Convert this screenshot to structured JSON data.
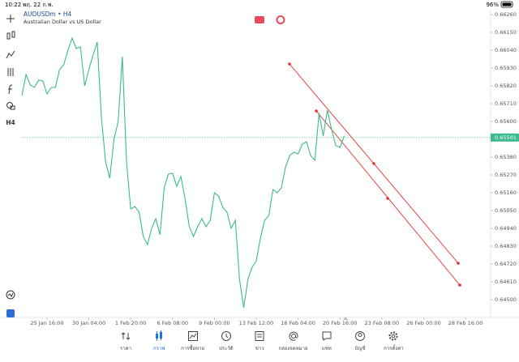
{
  "status_bar": {
    "time": "10:22",
    "date": "พฤ. 22 ก.พ.",
    "battery": "96%"
  },
  "header": {
    "symbol": "AUDUSDm • H4",
    "description": "Australian Dollar vs US Dollar"
  },
  "toolbar": {
    "timeframe": "H4"
  },
  "chart_data": {
    "type": "line",
    "color": "#3dba8c",
    "values": [
      0.6576,
      0.6589,
      0.65825,
      0.6581,
      0.65855,
      0.6585,
      0.6577,
      0.6581,
      0.6581,
      0.6592,
      0.6595,
      0.6604,
      0.66115,
      0.6605,
      0.6606,
      0.6582,
      0.6592,
      0.6601,
      0.6609,
      0.65625,
      0.6535,
      0.6525,
      0.6549,
      0.656,
      0.66,
      0.6535,
      0.6506,
      0.65075,
      0.6504,
      0.6489,
      0.6484,
      0.6494,
      0.65,
      0.649,
      0.6519,
      0.65275,
      0.6528,
      0.652,
      0.6526,
      0.6512,
      0.6495,
      0.6489,
      0.6495,
      0.65,
      0.6495,
      0.6499,
      0.6516,
      0.6514,
      0.6507,
      0.6504,
      0.6494,
      0.6499,
      0.64625,
      0.6445,
      0.64625,
      0.647,
      0.6474,
      0.6488,
      0.6499,
      0.6502,
      0.6518,
      0.6516,
      0.6519,
      0.6532,
      0.6539,
      0.6541,
      0.654,
      0.6546,
      0.65475,
      0.6539,
      0.6536,
      0.6565,
      0.6551,
      0.6567,
      0.6555,
      0.6545,
      0.6544,
      0.6551
    ],
    "current_price": 0.65501,
    "xlim": [
      0,
      112
    ],
    "xticks": [
      {
        "value": 6,
        "label": "25 Jan 16:00"
      },
      {
        "value": 16,
        "label": "30 Jan 04:00"
      },
      {
        "value": 26,
        "label": "1 Feb 20:00"
      },
      {
        "value": 36,
        "label": "6 Feb 08:00"
      },
      {
        "value": 46,
        "label": "9 Feb 00:00"
      },
      {
        "value": 56,
        "label": "13 Feb 12:00"
      },
      {
        "value": 66,
        "label": "16 Feb 04:00"
      },
      {
        "value": 76,
        "label": "20 Feb 16:00"
      },
      {
        "value": 86,
        "label": "23 Feb 08:00"
      },
      {
        "value": 96,
        "label": "26 Feb 00:00"
      },
      {
        "value": 106,
        "label": "28 Feb 16:00"
      }
    ],
    "ylim": [
      0.6439,
      0.6629
    ],
    "yticks": [
      {
        "value": 0.6626,
        "label": "0.66260"
      },
      {
        "value": 0.6615,
        "label": "0.66150"
      },
      {
        "value": 0.6604,
        "label": "0.66040"
      },
      {
        "value": 0.6593,
        "label": "0.65930"
      },
      {
        "value": 0.6582,
        "label": "0.65820"
      },
      {
        "value": 0.6571,
        "label": "0.65710"
      },
      {
        "value": 0.656,
        "label": "0.65600"
      },
      {
        "value": 0.6538,
        "label": "0.65380"
      },
      {
        "value": 0.6527,
        "label": "0.65270"
      },
      {
        "value": 0.6516,
        "label": "0.65160"
      },
      {
        "value": 0.6505,
        "label": "0.65050"
      },
      {
        "value": 0.6494,
        "label": "0.64940"
      },
      {
        "value": 0.6483,
        "label": "0.64830"
      },
      {
        "value": 0.6472,
        "label": "0.64720"
      },
      {
        "value": 0.6461,
        "label": "0.64610"
      },
      {
        "value": 0.645,
        "label": "0.64500"
      }
    ]
  },
  "nav": [
    "ราคา",
    "กราฟ",
    "การซื้อขาย",
    "ประวัติ",
    "ข่าว",
    "กล่องจดหมาย",
    "แชท",
    "บัญชี",
    "การตั้งค่า"
  ]
}
